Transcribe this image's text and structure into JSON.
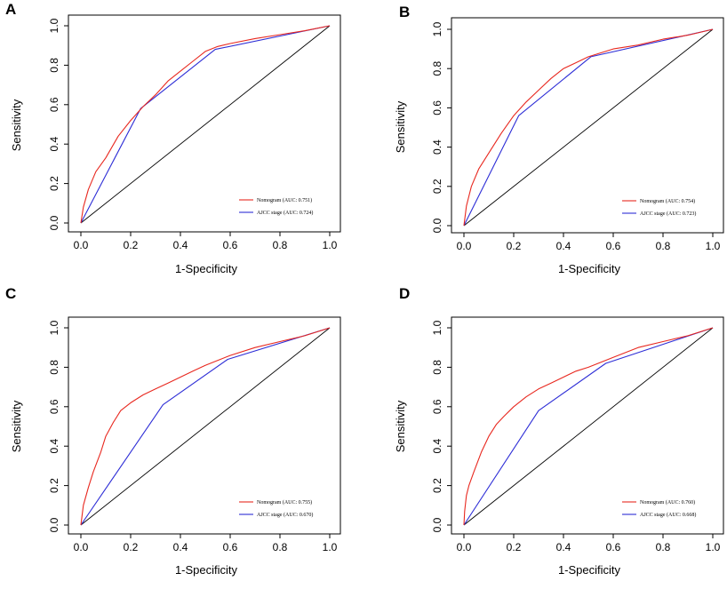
{
  "figure": {
    "colors": {
      "nomogram": "#e8281f",
      "ajcc": "#2d2dd6",
      "diagonal": "#000000",
      "frame": "#000000"
    },
    "panels": [
      {
        "label": "A",
        "xlabel": "1-Specificity",
        "ylabel": "Sensitivity",
        "legend": [
          {
            "text": "Nomogram (AUC: 0.751)"
          },
          {
            "text": "AJCC stage (AUC: 0.724)"
          }
        ]
      },
      {
        "label": "B",
        "xlabel": "1-Specificity",
        "ylabel": "Sensitivity",
        "legend": [
          {
            "text": "Nomogram (AUC: 0.754)"
          },
          {
            "text": "AJCC stage (AUC: 0.723)"
          }
        ]
      },
      {
        "label": "C",
        "xlabel": "1-Specificity",
        "ylabel": "Sensitivity",
        "legend": [
          {
            "text": "Nomogram (AUC: 0.755)"
          },
          {
            "text": "AJCC stage (AUC: 0.670)"
          }
        ]
      },
      {
        "label": "D",
        "xlabel": "1-Specificity",
        "ylabel": "Sensitivity",
        "legend": [
          {
            "text": "Nomogram (AUC: 0.760)"
          },
          {
            "text": "AJCC stage (AUC: 0.668)"
          }
        ]
      }
    ]
  },
  "chart_data": [
    {
      "type": "line",
      "title": "A",
      "xlabel": "1-Specificity",
      "ylabel": "Sensitivity",
      "xlim": [
        0,
        1
      ],
      "ylim": [
        0,
        1
      ],
      "ticks": [
        0.0,
        0.2,
        0.4,
        0.6,
        0.8,
        1.0
      ],
      "tick_labels": [
        "0.0",
        "0.2",
        "0.4",
        "0.6",
        "0.8",
        "1.0"
      ],
      "series": [
        {
          "name": "Nomogram (AUC: 0.751)",
          "x": [
            0,
            0.01,
            0.03,
            0.06,
            0.1,
            0.15,
            0.2,
            0.25,
            0.3,
            0.35,
            0.4,
            0.45,
            0.5,
            0.55,
            0.6,
            0.7,
            0.8,
            0.9,
            1.0
          ],
          "y": [
            0,
            0.08,
            0.17,
            0.26,
            0.33,
            0.44,
            0.52,
            0.59,
            0.65,
            0.72,
            0.77,
            0.82,
            0.87,
            0.895,
            0.91,
            0.935,
            0.955,
            0.975,
            1.0
          ]
        },
        {
          "name": "AJCC stage (AUC: 0.724)",
          "x": [
            0,
            0.24,
            0.54,
            1.0
          ],
          "y": [
            0,
            0.58,
            0.88,
            1.0
          ]
        },
        {
          "name": "reference",
          "x": [
            0,
            1
          ],
          "y": [
            0,
            1
          ]
        }
      ]
    },
    {
      "type": "line",
      "title": "B",
      "xlabel": "1-Specificity",
      "ylabel": "Sensitivity",
      "xlim": [
        0,
        1
      ],
      "ylim": [
        0,
        1
      ],
      "ticks": [
        0.0,
        0.2,
        0.4,
        0.6,
        0.8,
        1.0
      ],
      "tick_labels": [
        "0.0",
        "0.2",
        "0.4",
        "0.6",
        "0.8",
        "1.0"
      ],
      "series": [
        {
          "name": "Nomogram (AUC: 0.754)",
          "x": [
            0,
            0.01,
            0.03,
            0.06,
            0.1,
            0.15,
            0.2,
            0.25,
            0.3,
            0.35,
            0.4,
            0.45,
            0.5,
            0.55,
            0.6,
            0.7,
            0.8,
            0.9,
            1.0
          ],
          "y": [
            0,
            0.1,
            0.2,
            0.29,
            0.37,
            0.47,
            0.56,
            0.63,
            0.69,
            0.75,
            0.8,
            0.83,
            0.86,
            0.88,
            0.9,
            0.92,
            0.95,
            0.97,
            1.0
          ]
        },
        {
          "name": "AJCC stage (AUC: 0.723)",
          "x": [
            0,
            0.22,
            0.51,
            1.0
          ],
          "y": [
            0,
            0.56,
            0.86,
            1.0
          ]
        },
        {
          "name": "reference",
          "x": [
            0,
            1
          ],
          "y": [
            0,
            1
          ]
        }
      ]
    },
    {
      "type": "line",
      "title": "C",
      "xlabel": "1-Specificity",
      "ylabel": "Sensitivity",
      "xlim": [
        0,
        1
      ],
      "ylim": [
        0,
        1
      ],
      "ticks": [
        0.0,
        0.2,
        0.4,
        0.6,
        0.8,
        1.0
      ],
      "tick_labels": [
        "0.0",
        "0.2",
        "0.4",
        "0.6",
        "0.8",
        "1.0"
      ],
      "series": [
        {
          "name": "Nomogram (AUC: 0.755)",
          "x": [
            0,
            0.01,
            0.03,
            0.05,
            0.08,
            0.1,
            0.13,
            0.16,
            0.2,
            0.25,
            0.3,
            0.35,
            0.4,
            0.45,
            0.5,
            0.6,
            0.7,
            0.8,
            0.9,
            1.0
          ],
          "y": [
            0,
            0.1,
            0.19,
            0.27,
            0.37,
            0.45,
            0.52,
            0.58,
            0.62,
            0.66,
            0.69,
            0.72,
            0.75,
            0.78,
            0.81,
            0.86,
            0.9,
            0.93,
            0.96,
            1.0
          ]
        },
        {
          "name": "AJCC stage (AUC: 0.670)",
          "x": [
            0,
            0.33,
            0.59,
            1.0
          ],
          "y": [
            0,
            0.61,
            0.84,
            1.0
          ]
        },
        {
          "name": "reference",
          "x": [
            0,
            1
          ],
          "y": [
            0,
            1
          ]
        }
      ]
    },
    {
      "type": "line",
      "title": "D",
      "xlabel": "1-Specificity",
      "ylabel": "Sensitivity",
      "xlim": [
        0,
        1
      ],
      "ylim": [
        0,
        1
      ],
      "ticks": [
        0.0,
        0.2,
        0.4,
        0.6,
        0.8,
        1.0
      ],
      "tick_labels": [
        "0.0",
        "0.2",
        "0.4",
        "0.6",
        "0.8",
        "1.0"
      ],
      "series": [
        {
          "name": "Nomogram (AUC: 0.760)",
          "x": [
            0,
            0.003,
            0.01,
            0.02,
            0.04,
            0.07,
            0.1,
            0.13,
            0.16,
            0.2,
            0.25,
            0.3,
            0.35,
            0.4,
            0.45,
            0.5,
            0.6,
            0.7,
            0.8,
            0.9,
            1.0
          ],
          "y": [
            0,
            0.07,
            0.15,
            0.2,
            0.27,
            0.37,
            0.45,
            0.51,
            0.55,
            0.6,
            0.65,
            0.69,
            0.72,
            0.75,
            0.78,
            0.8,
            0.85,
            0.9,
            0.93,
            0.96,
            1.0
          ]
        },
        {
          "name": "AJCC stage (AUC: 0.668)",
          "x": [
            0,
            0.3,
            0.57,
            1.0
          ],
          "y": [
            0,
            0.58,
            0.82,
            1.0
          ]
        },
        {
          "name": "reference",
          "x": [
            0,
            1
          ],
          "y": [
            0,
            1
          ]
        }
      ]
    }
  ]
}
